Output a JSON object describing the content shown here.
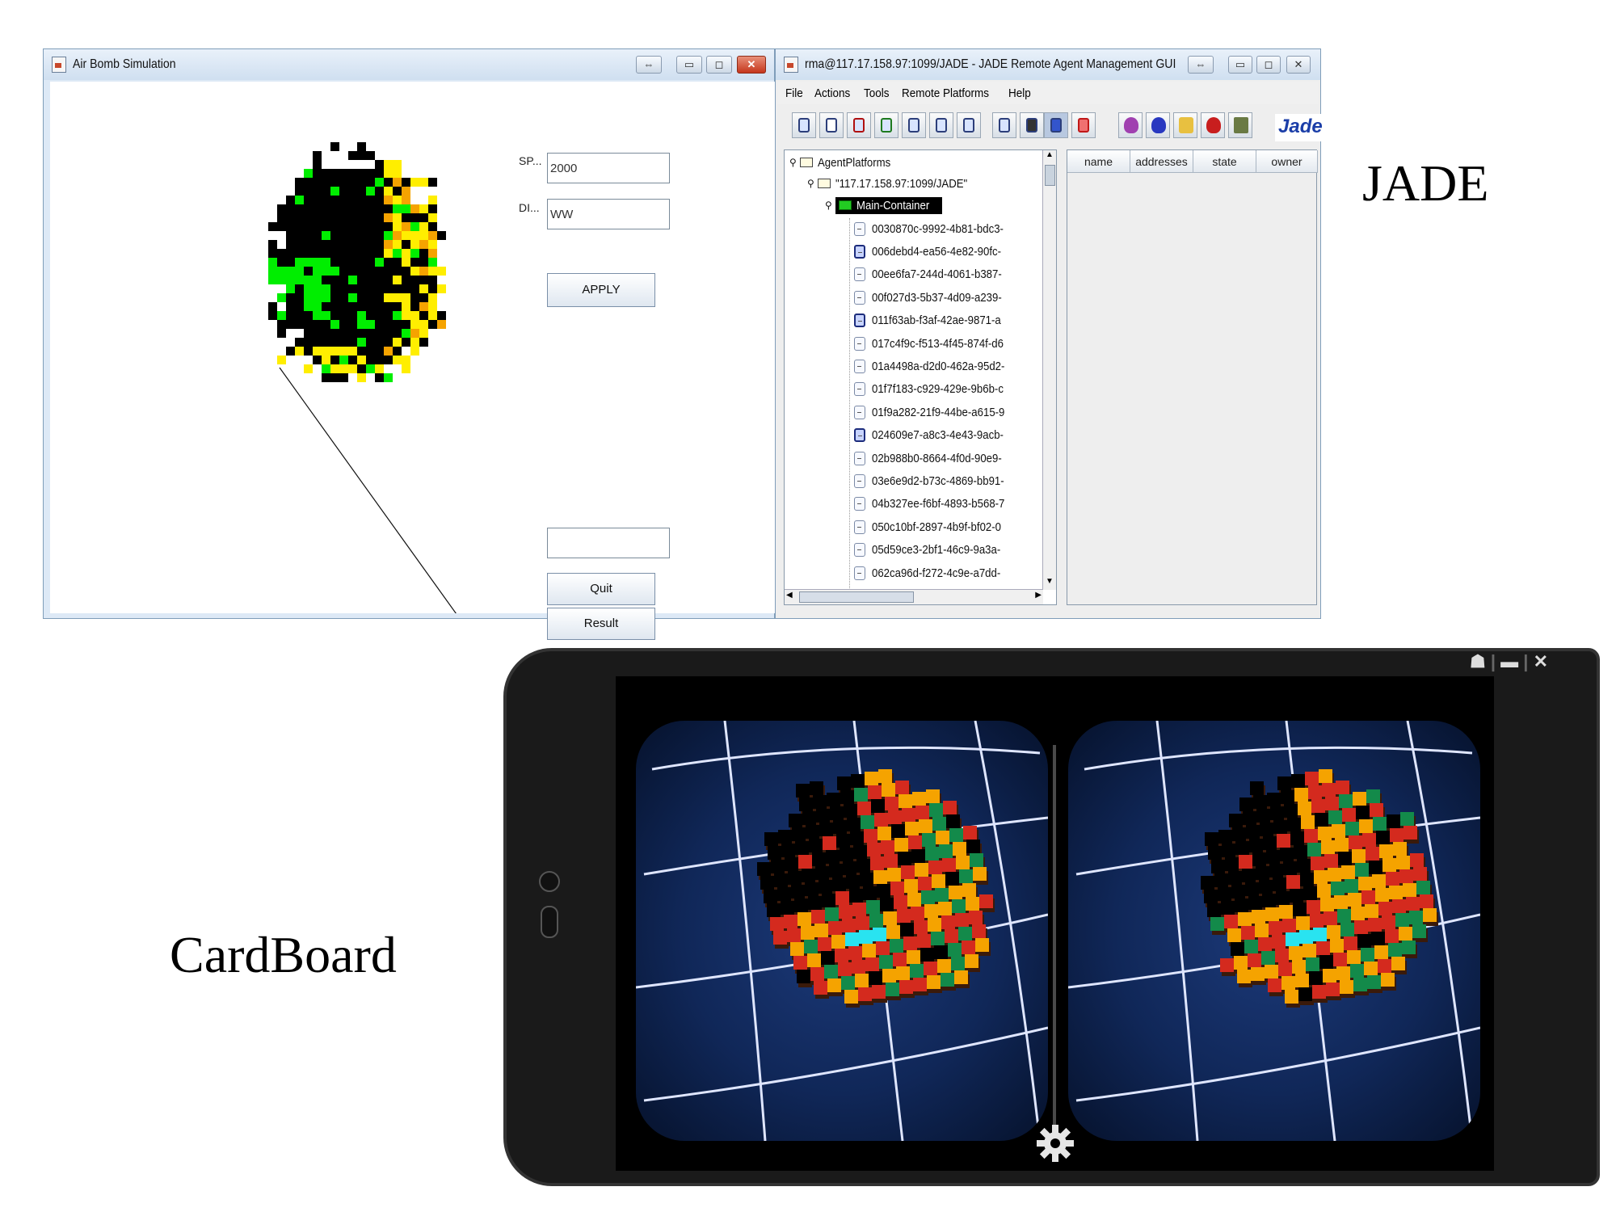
{
  "sim_window": {
    "title": "Air Bomb Simulation",
    "sp_label": "SP...",
    "sp_value": "2000",
    "di_label": "DI...",
    "di_value": "WW",
    "apply_label": "APPLY",
    "result_field_value": "",
    "quit_label": "Quit",
    "result_label": "Result"
  },
  "jade_window": {
    "title": "rma@117.17.158.97:1099/JADE - JADE Remote Agent Management GUI",
    "menu": [
      "File",
      "Actions",
      "Tools",
      "Remote Platforms",
      "Help"
    ],
    "tree": {
      "root": "AgentPlatforms",
      "platform": "\"117.17.158.97:1099/JADE\"",
      "container": "Main-Container",
      "agents": [
        {
          "id": "0030870c-9992-4b81-bdc3-",
          "active": false
        },
        {
          "id": "006debd4-ea56-4e82-90fc-",
          "active": true
        },
        {
          "id": "00ee6fa7-244d-4061-b387-",
          "active": false
        },
        {
          "id": "00f027d3-5b37-4d09-a239-",
          "active": false
        },
        {
          "id": "011f63ab-f3af-42ae-9871-a",
          "active": true
        },
        {
          "id": "017c4f9c-f513-4f45-874f-d6",
          "active": false
        },
        {
          "id": "01a4498a-d2d0-462a-95d2-",
          "active": false
        },
        {
          "id": "01f7f183-c929-429e-9b6b-c",
          "active": false
        },
        {
          "id": "01f9a282-21f9-44be-a615-9",
          "active": false
        },
        {
          "id": "024609e7-a8c3-4e43-9acb-",
          "active": true
        },
        {
          "id": "02b988b0-8664-4f0d-90e9-",
          "active": false
        },
        {
          "id": "03e6e9d2-b73c-4869-bb91-",
          "active": false
        },
        {
          "id": "04b327ee-f6bf-4893-b568-7",
          "active": false
        },
        {
          "id": "050c10bf-2897-4b9f-bf02-0",
          "active": false
        },
        {
          "id": "05d59ce3-2bf1-46c9-9a3a-",
          "active": false
        },
        {
          "id": "062ca96d-f272-4c9e-a7dd-",
          "active": false
        }
      ]
    },
    "table_columns": [
      "name",
      "addresses",
      "state",
      "owner"
    ],
    "logo_text": "Jade"
  },
  "labels": {
    "jade": "JADE",
    "cardboard": "CardBoard"
  },
  "icons": {
    "gear": "gear-icon",
    "ghost": "ghost-icon"
  },
  "colors": {
    "green": "#00ee00",
    "yellow": "#ffee00",
    "orange": "#f5a300",
    "red": "#d42a1e",
    "teal": "#138a4a",
    "cyan": "#29e3f0",
    "sky": "#132e6a"
  }
}
